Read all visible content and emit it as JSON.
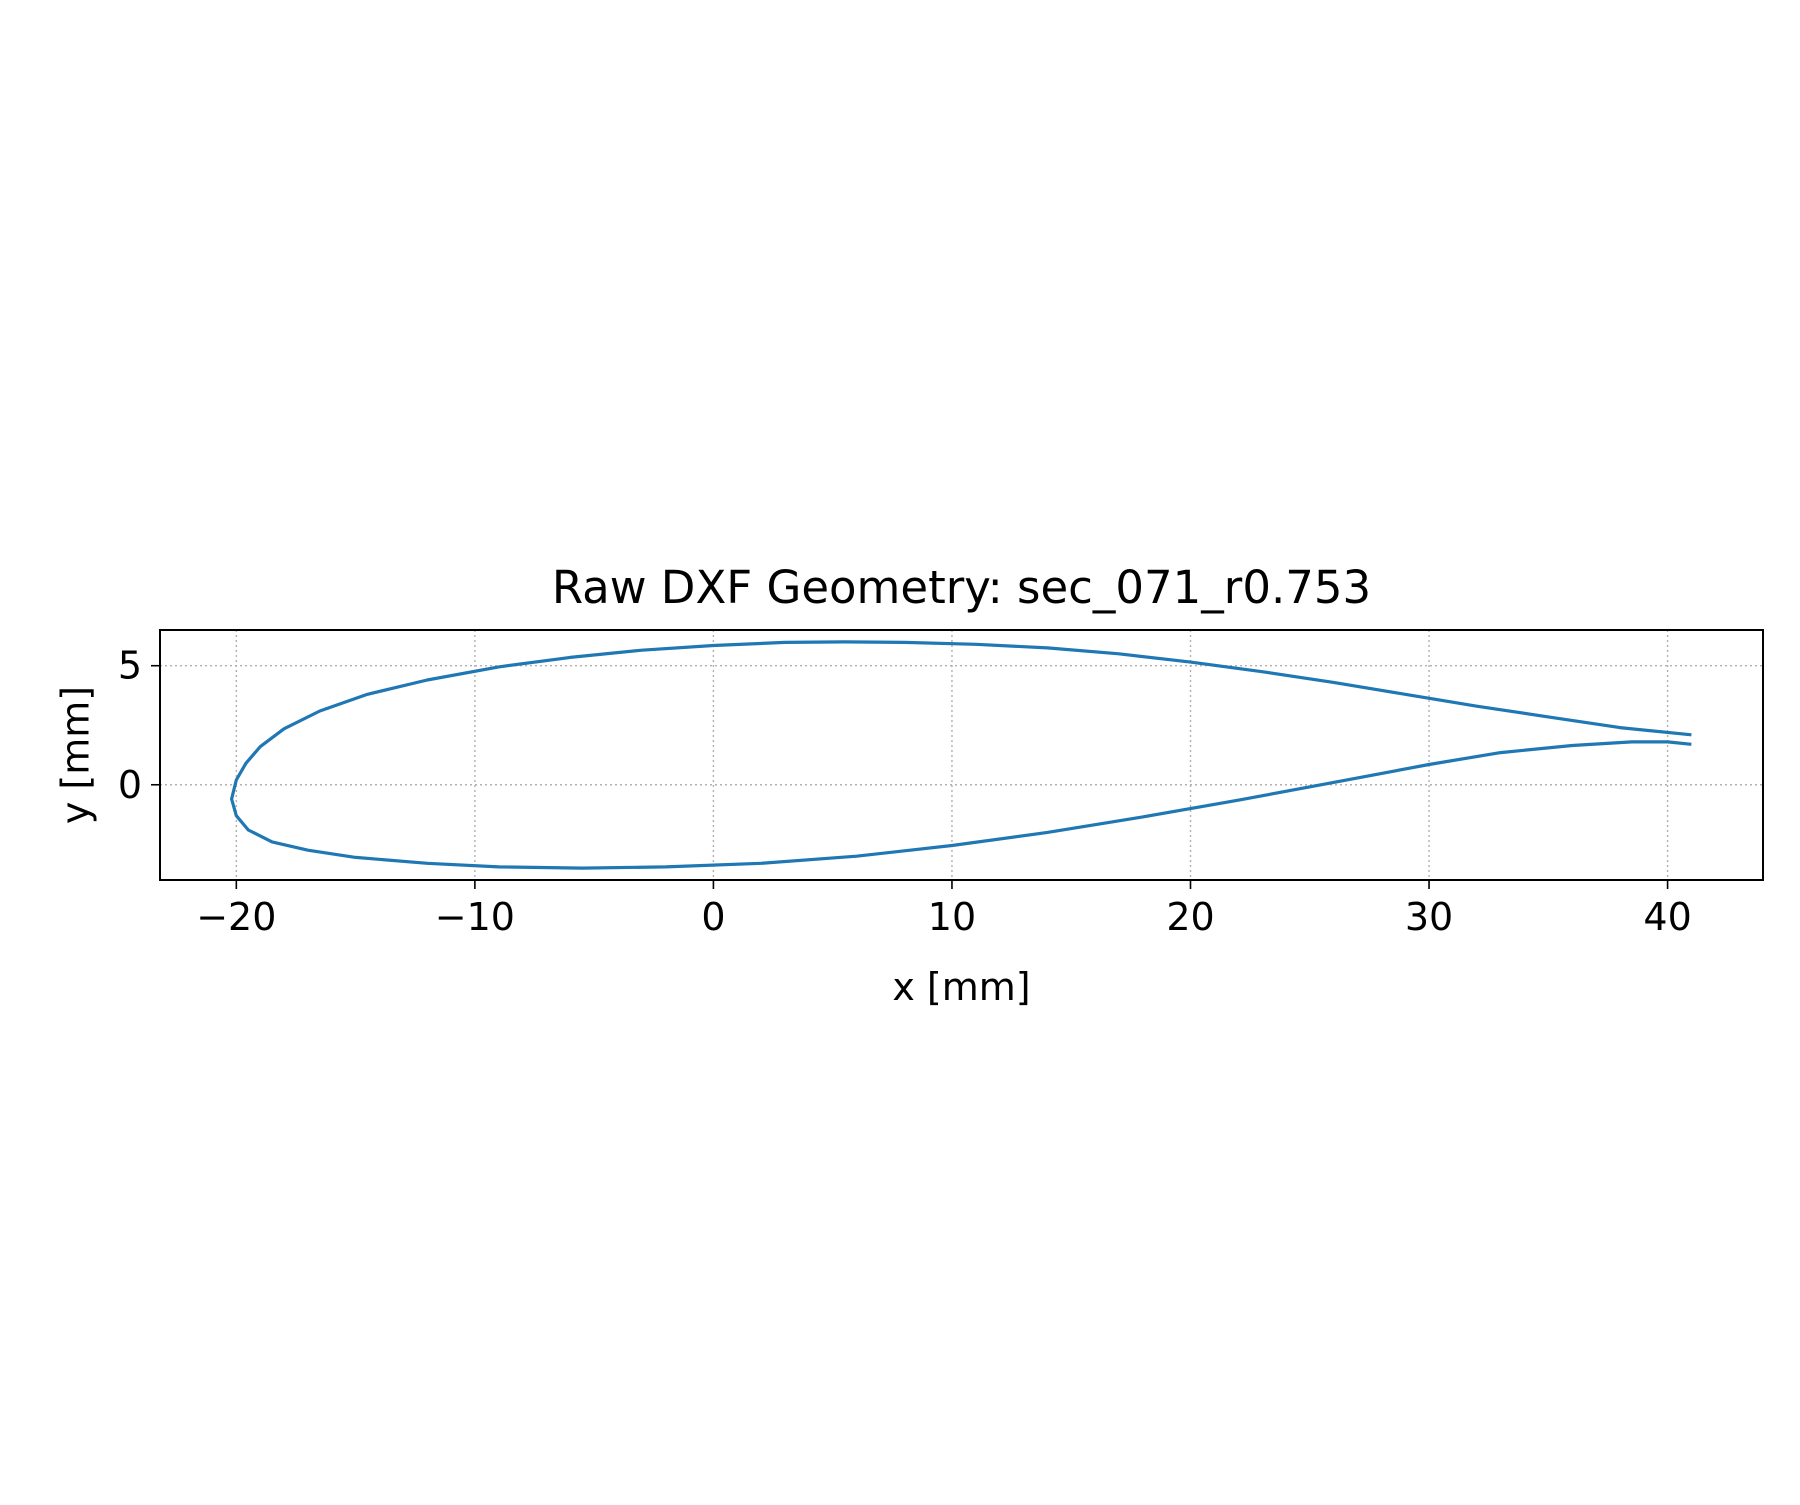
{
  "chart_data": {
    "type": "line",
    "title": "Raw DXF Geometry: sec_071_r0.753",
    "xlabel": "x [mm]",
    "ylabel": "y [mm]",
    "xlim": [
      -23.2,
      44.0
    ],
    "ylim": [
      -4.0,
      6.5
    ],
    "xticks": [
      -20,
      -10,
      0,
      10,
      20,
      30,
      40
    ],
    "xtick_labels": [
      "−20",
      "−10",
      "0",
      "10",
      "20",
      "30",
      "40"
    ],
    "yticks": [
      0,
      5
    ],
    "ytick_labels": [
      "0",
      "5"
    ],
    "grid": true,
    "aspect": "equal",
    "series": [
      {
        "color": "#1f77b4",
        "x": [
          41.0,
          38.0,
          35.0,
          32.0,
          29.0,
          26.0,
          23.0,
          20.0,
          17.0,
          14.0,
          11.0,
          8.0,
          5.5,
          3.0,
          0.0,
          -3.0,
          -6.0,
          -9.0,
          -12.0,
          -14.5,
          -16.5,
          -18.0,
          -19.0,
          -19.6,
          -20.0,
          -20.2,
          -20.0,
          -19.5,
          -18.5,
          -17.0,
          -15.0,
          -12.0,
          -9.0,
          -5.5,
          -2.0,
          2.0,
          6.0,
          10.0,
          14.0,
          18.0,
          22.0,
          26.0,
          30.0,
          33.0,
          36.0,
          38.5,
          40.0,
          41.0
        ],
        "y": [
          2.1,
          2.4,
          2.85,
          3.3,
          3.8,
          4.3,
          4.75,
          5.15,
          5.5,
          5.75,
          5.9,
          5.98,
          6.0,
          5.98,
          5.85,
          5.65,
          5.35,
          4.95,
          4.4,
          3.8,
          3.1,
          2.35,
          1.6,
          0.9,
          0.2,
          -0.6,
          -1.3,
          -1.9,
          -2.4,
          -2.75,
          -3.05,
          -3.3,
          -3.45,
          -3.5,
          -3.45,
          -3.3,
          -3.0,
          -2.55,
          -2.0,
          -1.35,
          -0.65,
          0.1,
          0.85,
          1.35,
          1.65,
          1.8,
          1.8,
          1.7
        ]
      }
    ]
  }
}
